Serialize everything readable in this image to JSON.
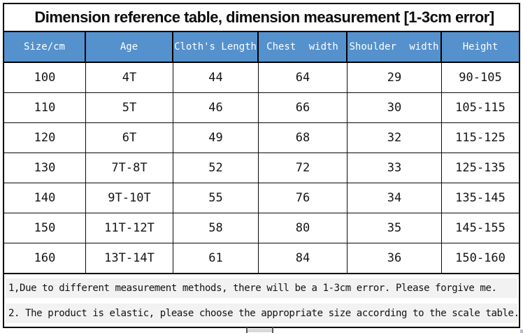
{
  "title": "Dimension reference table, dimension measurement [1-3cm error]",
  "chart_data": {
    "type": "table",
    "title": "Dimension reference table, dimension measurement [1-3cm error]",
    "columns": [
      "Size/cm",
      "Age",
      "Cloth's Length",
      "Chest width",
      "Shoulder width",
      "Height"
    ],
    "rows": [
      [
        "100",
        "4T",
        "44",
        "64",
        "29",
        "90-105"
      ],
      [
        "110",
        "5T",
        "46",
        "66",
        "30",
        "105-115"
      ],
      [
        "120",
        "6T",
        "49",
        "68",
        "32",
        "115-125"
      ],
      [
        "130",
        "7T-8T",
        "52",
        "72",
        "33",
        "125-135"
      ],
      [
        "140",
        "9T-10T",
        "55",
        "76",
        "34",
        "135-145"
      ],
      [
        "150",
        "11T-12T",
        "58",
        "80",
        "35",
        "145-155"
      ],
      [
        "160",
        "13T-14T",
        "61",
        "84",
        "36",
        "150-160"
      ]
    ]
  },
  "notes": [
    "1,Due to different measurement methods, there will be a 1-3cm error. Please forgive me.",
    "2. The product is elastic, please choose the appropriate size according to the scale table."
  ],
  "colors": {
    "header_bg": "#5591cd",
    "header_text": "#ffffff",
    "border": "#000000",
    "note_bg": "#f2f2f2"
  }
}
